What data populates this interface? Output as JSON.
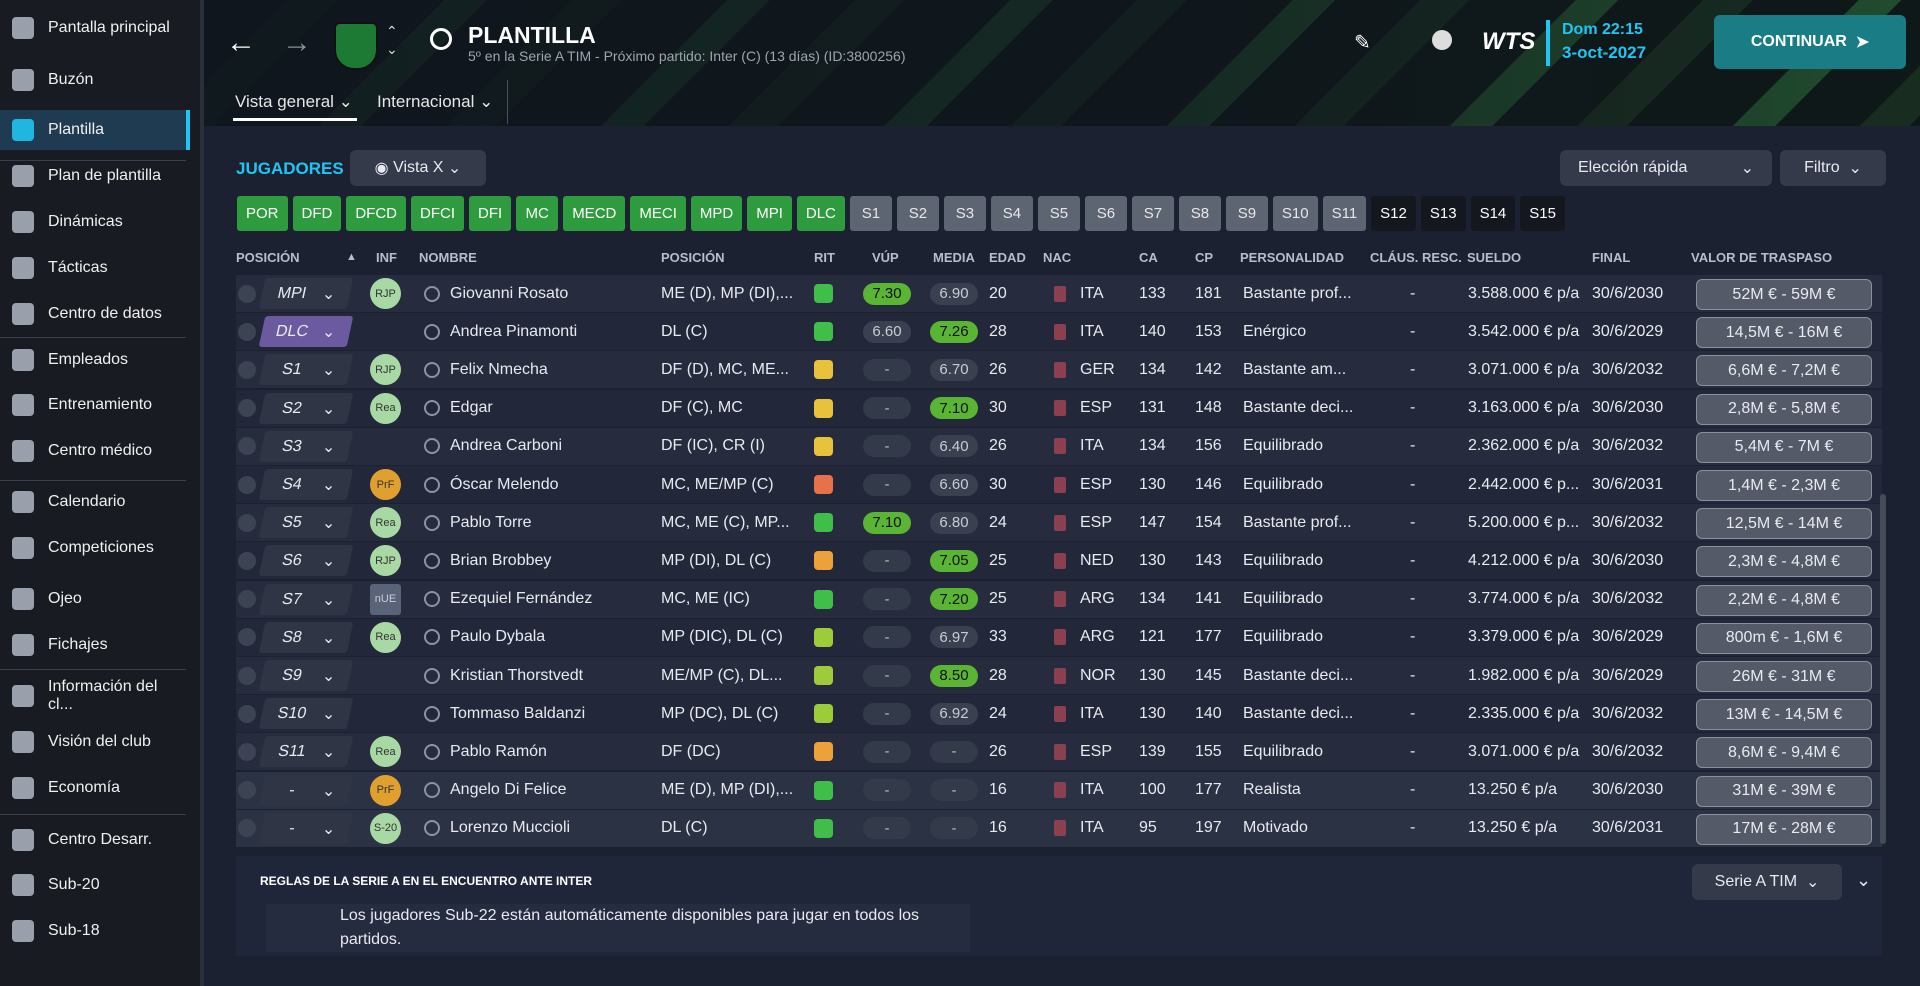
{
  "sidebar": [
    "Pantalla principal",
    "Buzón",
    "Plantilla",
    "Plan de plantilla",
    "Dinámicas",
    "Tácticas",
    "Centro de datos",
    "Empleados",
    "Entrenamiento",
    "Centro médico",
    "Calendario",
    "Competiciones",
    "Ojeo",
    "Fichajes",
    "Información del cl...",
    "Visión del club",
    "Economía",
    "Centro Desarr.",
    "Sub-20",
    "Sub-18"
  ],
  "header": {
    "title": "PLANTILLA",
    "subtitle": "5º en la Serie A TIM - Próximo partido: Inter (C)  (13 días) (ID:3800256)",
    "logo": "WTS",
    "day_time": "Dom 22:15",
    "date": "3-oct-2027",
    "continue": "CONTINUAR",
    "tabs": [
      "Vista general",
      "Internacional"
    ]
  },
  "toolbar": {
    "label": "JUGADORES",
    "view": "Vista X",
    "quick": "Elección rápida",
    "filter": "Filtro"
  },
  "chips": [
    "POR",
    "DFD",
    "DFCD",
    "DFCI",
    "DFI",
    "MC",
    "MECD",
    "MECI",
    "MPD",
    "MPI",
    "DLC",
    "S1",
    "S2",
    "S3",
    "S4",
    "S5",
    "S6",
    "S7",
    "S8",
    "S9",
    "S10",
    "S11",
    "S12",
    "S13",
    "S14",
    "S15"
  ],
  "table": {
    "columns": [
      "POSICIÓN",
      "INF",
      "NOMBRE",
      "POSICIÓN",
      "RIT",
      "VÚP",
      "MEDIA",
      "EDAD",
      "NAC",
      "CA",
      "CP",
      "PERSONALIDAD",
      "CLÁUS. RESC.",
      "SUELDO",
      "FINAL",
      "VALOR DE TRASPASO"
    ],
    "rows": [
      {
        "slot": "MPI",
        "inf": "RJP",
        "name": "Giovanni Rosato",
        "pos": "ME (D), MP (DI),...",
        "rit": "#3fbf4a",
        "vup": "7.30",
        "media": "6.90",
        "age": "20",
        "nat": "ITA",
        "ca": "133",
        "cp": "181",
        "pers": "Bastante prof...",
        "claus": "-",
        "wage": "3.588.000 € p/a",
        "end": "30/6/2030",
        "value": "52M € - 59M €"
      },
      {
        "slot": "DLC",
        "inf": "",
        "name": "Andrea Pinamonti",
        "pos": "DL (C)",
        "rit": "#3fbf4a",
        "vup": "6.60",
        "media": "7.26",
        "age": "28",
        "nat": "ITA",
        "ca": "140",
        "cp": "153",
        "pers": "Enérgico",
        "claus": "-",
        "wage": "3.542.000 € p/a",
        "end": "30/6/2029",
        "value": "14,5M € - 16M €"
      },
      {
        "slot": "S1",
        "inf": "RJP",
        "name": "Felix Nmecha",
        "pos": "DF (D), MC, ME...",
        "rit": "#e8c23a",
        "vup": "-",
        "media": "6.70",
        "age": "26",
        "nat": "GER",
        "ca": "134",
        "cp": "142",
        "pers": "Bastante am...",
        "claus": "-",
        "wage": "3.071.000 € p/a",
        "end": "30/6/2032",
        "value": "6,6M € - 7,2M €"
      },
      {
        "slot": "S2",
        "inf": "Rea",
        "name": "Edgar",
        "pos": "DF (C), MC",
        "rit": "#e8c23a",
        "vup": "-",
        "media": "7.10",
        "age": "30",
        "nat": "ESP",
        "ca": "131",
        "cp": "148",
        "pers": "Bastante deci...",
        "claus": "-",
        "wage": "3.163.000 € p/a",
        "end": "30/6/2030",
        "value": "2,8M € - 5,8M €"
      },
      {
        "slot": "S3",
        "inf": "",
        "name": "Andrea Carboni",
        "pos": "DF (IC), CR (I)",
        "rit": "#e8c23a",
        "vup": "-",
        "media": "6.40",
        "age": "26",
        "nat": "ITA",
        "ca": "134",
        "cp": "156",
        "pers": "Equilibrado",
        "claus": "-",
        "wage": "2.362.000 € p/a",
        "end": "30/6/2032",
        "value": "5,4M € - 7M €"
      },
      {
        "slot": "S4",
        "inf": "PrF",
        "name": "Óscar Melendo",
        "pos": "MC, ME/MP (C)",
        "rit": "#e8704a",
        "vup": "-",
        "media": "6.60",
        "age": "30",
        "nat": "ESP",
        "ca": "130",
        "cp": "146",
        "pers": "Equilibrado",
        "claus": "-",
        "wage": "2.442.000 € p...",
        "end": "30/6/2031",
        "value": "1,4M € - 2,3M €"
      },
      {
        "slot": "S5",
        "inf": "Rea",
        "name": "Pablo Torre",
        "pos": "MC, ME (C), MP...",
        "rit": "#3fbf4a",
        "vup": "7.10",
        "media": "6.80",
        "age": "24",
        "nat": "ESP",
        "ca": "147",
        "cp": "154",
        "pers": "Bastante prof...",
        "claus": "-",
        "wage": "5.200.000 € p...",
        "end": "30/6/2032",
        "value": "12,5M € - 14M €"
      },
      {
        "slot": "S6",
        "inf": "RJP",
        "name": "Brian Brobbey",
        "pos": "MP (DI), DL (C)",
        "rit": "#eea03a",
        "vup": "-",
        "media": "7.05",
        "age": "25",
        "nat": "NED",
        "ca": "130",
        "cp": "143",
        "pers": "Equilibrado",
        "claus": "-",
        "wage": "4.212.000 € p/a",
        "end": "30/6/2030",
        "value": "2,3M € - 4,8M €"
      },
      {
        "slot": "S7",
        "inf": "nUE",
        "name": "Ezequiel Fernández",
        "pos": "MC, ME (IC)",
        "rit": "#3fbf4a",
        "vup": "-",
        "media": "7.20",
        "age": "25",
        "nat": "ARG",
        "ca": "134",
        "cp": "141",
        "pers": "Equilibrado",
        "claus": "-",
        "wage": "3.774.000 € p/a",
        "end": "30/6/2032",
        "value": "2,2M € - 4,8M €"
      },
      {
        "slot": "S8",
        "inf": "Rea",
        "name": "Paulo Dybala",
        "pos": "MP (DIC), DL (C)",
        "rit": "#9ccc3a",
        "vup": "-",
        "media": "6.97",
        "age": "33",
        "nat": "ARG",
        "ca": "121",
        "cp": "177",
        "pers": "Equilibrado",
        "claus": "-",
        "wage": "3.379.000 € p/a",
        "end": "30/6/2029",
        "value": "800m € - 1,6M €"
      },
      {
        "slot": "S9",
        "inf": "",
        "name": "Kristian Thorstvedt",
        "pos": "ME/MP (C), DL...",
        "rit": "#9ccc3a",
        "vup": "-",
        "media": "8.50",
        "age": "28",
        "nat": "NOR",
        "ca": "130",
        "cp": "145",
        "pers": "Bastante deci...",
        "claus": "-",
        "wage": "1.982.000 € p/a",
        "end": "30/6/2029",
        "value": "26M € - 31M €"
      },
      {
        "slot": "S10",
        "inf": "",
        "name": "Tommaso Baldanzi",
        "pos": "MP (DC), DL (C)",
        "rit": "#9ccc3a",
        "vup": "-",
        "media": "6.92",
        "age": "24",
        "nat": "ITA",
        "ca": "130",
        "cp": "140",
        "pers": "Bastante deci...",
        "claus": "-",
        "wage": "2.335.000 € p/a",
        "end": "30/6/2032",
        "value": "13M € - 14,5M €"
      },
      {
        "slot": "S11",
        "inf": "Rea",
        "name": "Pablo Ramón",
        "pos": "DF (DC)",
        "rit": "#eea03a",
        "vup": "-",
        "media": "-",
        "age": "26",
        "nat": "ESP",
        "ca": "139",
        "cp": "155",
        "pers": "Equilibrado",
        "claus": "-",
        "wage": "3.071.000 € p/a",
        "end": "30/6/2032",
        "value": "8,6M € - 9,4M €"
      },
      {
        "slot": "-",
        "inf": "PrF",
        "name": "Angelo Di Felice",
        "pos": "ME (D), MP (DI),...",
        "rit": "#3fbf4a",
        "vup": "-",
        "media": "-",
        "age": "16",
        "nat": "ITA",
        "ca": "100",
        "cp": "177",
        "pers": "Realista",
        "claus": "-",
        "wage": "13.250 € p/a",
        "end": "30/6/2030",
        "value": "31M € - 39M €"
      },
      {
        "slot": "-",
        "inf": "S-20",
        "name": "Lorenzo Muccioli",
        "pos": "DL (C)",
        "rit": "#3fbf4a",
        "vup": "-",
        "media": "-",
        "age": "16",
        "nat": "ITA",
        "ca": "95",
        "cp": "197",
        "pers": "Motivado",
        "claus": "-",
        "wage": "13.250 € p/a",
        "end": "30/6/2031",
        "value": "17M € - 28M €"
      }
    ]
  },
  "rules": {
    "title": "REGLAS DE LA SERIE A EN EL ENCUENTRO ANTE INTER",
    "text": "Los jugadores Sub-22 están automáticamente disponibles para jugar en todos los partidos.",
    "competition": "Serie A TIM"
  }
}
